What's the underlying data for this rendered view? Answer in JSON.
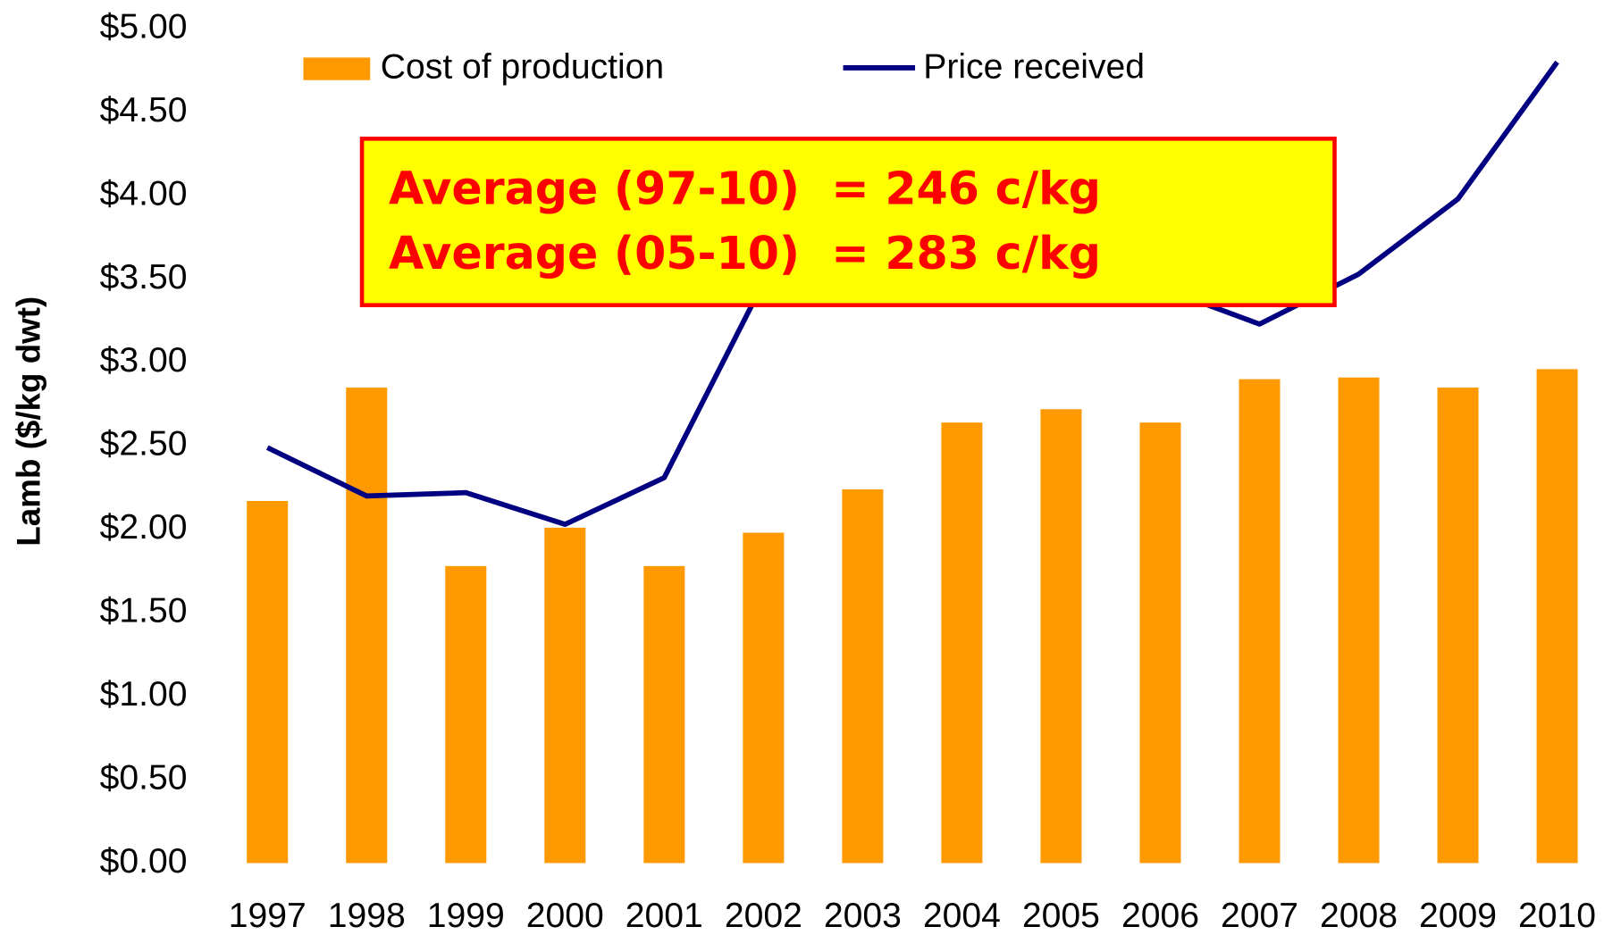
{
  "chart_data": {
    "type": "bar_line",
    "y_label": "Lamb ($/kg dwt)",
    "categories": [
      "1997",
      "1998",
      "1999",
      "2000",
      "2001",
      "2002",
      "2003",
      "2004",
      "2005",
      "2006",
      "2007",
      "2008",
      "2009",
      "2010"
    ],
    "series": [
      {
        "name": "Cost of production",
        "type": "bar",
        "color": "#ff9900",
        "values": [
          2.17,
          2.85,
          1.78,
          2.01,
          1.78,
          1.98,
          2.24,
          2.64,
          2.72,
          2.64,
          2.9,
          2.91,
          2.85,
          2.96
        ]
      },
      {
        "name": "Price received",
        "type": "line",
        "color": "#000080",
        "values": [
          2.49,
          2.2,
          2.22,
          2.03,
          2.31,
          3.48,
          3.6,
          3.7,
          3.6,
          3.45,
          3.23,
          3.53,
          3.98,
          4.8
        ]
      }
    ],
    "ylim": [
      0,
      5
    ],
    "yticks": [
      {
        "value": 0,
        "label": "$0.00"
      },
      {
        "value": 0.5,
        "label": "$0.50"
      },
      {
        "value": 1,
        "label": "$1.00"
      },
      {
        "value": 1.5,
        "label": "$1.50"
      },
      {
        "value": 2,
        "label": "$2.00"
      },
      {
        "value": 2.5,
        "label": "$2.50"
      },
      {
        "value": 3,
        "label": "$3.00"
      },
      {
        "value": 3.5,
        "label": "$3.50"
      },
      {
        "value": 4,
        "label": "$4.00"
      },
      {
        "value": 4.5,
        "label": "$4.50"
      },
      {
        "value": 5,
        "label": "$5.00"
      }
    ],
    "annotations": [
      "Average (97-10)  = 246 c/kg",
      "Average (05-10)  = 283 c/kg"
    ],
    "legend": "top"
  }
}
